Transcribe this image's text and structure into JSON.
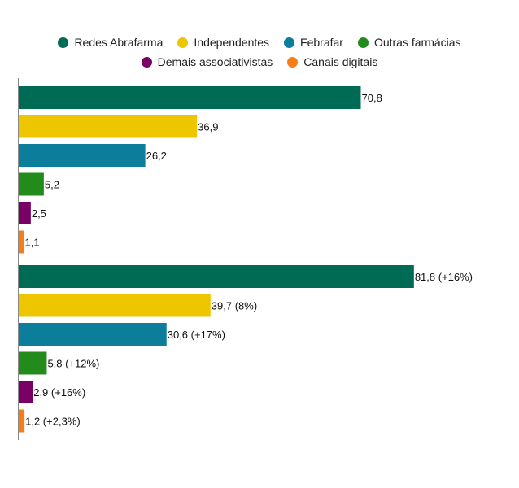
{
  "chart_data": {
    "type": "bar",
    "orientation": "horizontal",
    "title": "",
    "xlabel": "",
    "ylabel": "",
    "grid": false,
    "legend_position": "top-center",
    "xlim": [
      0,
      90
    ],
    "series": [
      {
        "name": "Redes Abrafarma",
        "color": "#006b54"
      },
      {
        "name": "Independentes",
        "color": "#eec600"
      },
      {
        "name": "Febrafar",
        "color": "#0c7d9b"
      },
      {
        "name": "Outras farmácias",
        "color": "#228b1c"
      },
      {
        "name": "Demais associativistas",
        "color": "#7a0066"
      },
      {
        "name": "Canais digitais",
        "color": "#f97d16"
      }
    ],
    "groups": [
      {
        "values": [
          70.8,
          36.9,
          26.2,
          5.2,
          2.5,
          1.1
        ],
        "labels": [
          "70,8",
          "36,9",
          "26,2",
          "5,2",
          "2,5",
          "1,1"
        ]
      },
      {
        "values": [
          81.8,
          39.7,
          30.6,
          5.8,
          2.9,
          1.2
        ],
        "labels": [
          "81,8 (+16%)",
          "39,7 (8%)",
          "30,6 (+17%)",
          "5,8 (+12%)",
          "2,9 (+16%)",
          "1,2 (+2,3%)"
        ]
      }
    ]
  }
}
